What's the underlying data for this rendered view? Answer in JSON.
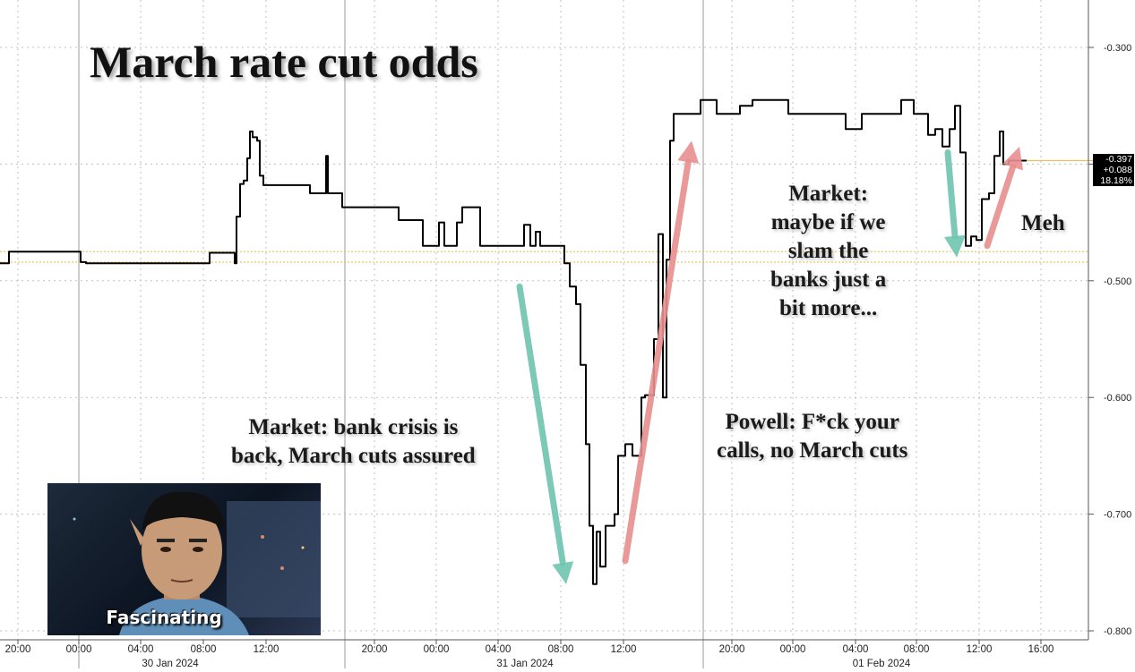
{
  "title": "March rate cut odds",
  "annotations": {
    "left": "Market: bank crisis is back, March cuts assured",
    "left_lines": [
      "Market: bank crisis is",
      "back, March cuts assured"
    ],
    "middle_lines": [
      "Powell: F*ck your",
      "calls, no March cuts"
    ],
    "right_lines": [
      "Market:",
      "maybe if we",
      "slam the",
      "banks just a",
      "bit more..."
    ],
    "meh": "Meh"
  },
  "meme_caption": "Fascinating",
  "last_value": {
    "value": "-0.397",
    "change": "+0.088",
    "percent": "18.18%"
  },
  "colors": {
    "line": "#000000",
    "down_arrow": "#6fc4b0",
    "up_arrow": "#e88f8f",
    "ref_line": "#e6c25a",
    "grid": "#bfbfbf"
  },
  "chart_data": {
    "type": "line",
    "title": "March rate cut odds",
    "xlabel": "",
    "ylabel": "",
    "ylim": [
      -0.8,
      -0.27
    ],
    "y_ticks": [
      "-0.300",
      "-0.400",
      "-0.500",
      "-0.600",
      "-0.700",
      "-0.800"
    ],
    "x_ticks": [
      "20:00",
      "00:00",
      "04:00",
      "08:00",
      "12:00",
      "20:00",
      "00:00",
      "04:00",
      "08:00",
      "12:00",
      "20:00",
      "00:00",
      "04:00",
      "08:00",
      "12:00",
      "16:00"
    ],
    "date_labels": [
      "30 Jan 2024",
      "31 Jan 2024",
      "01 Feb 2024"
    ],
    "series": [
      {
        "values": [
          [
            0,
            -0.485
          ],
          [
            6,
            -0.485
          ],
          [
            10,
            -0.475
          ],
          [
            84,
            -0.475
          ],
          [
            90,
            -0.484
          ],
          [
            96,
            -0.485
          ],
          [
            230,
            -0.485
          ],
          [
            234,
            -0.476
          ],
          [
            258,
            -0.476
          ],
          [
            262,
            -0.485
          ],
          [
            264,
            -0.445
          ],
          [
            268,
            -0.417
          ],
          [
            272,
            -0.414
          ],
          [
            276,
            -0.395
          ],
          [
            279,
            -0.372
          ],
          [
            282,
            -0.377
          ],
          [
            287,
            -0.38
          ],
          [
            290,
            -0.41
          ],
          [
            294,
            -0.418
          ],
          [
            342,
            -0.418
          ],
          [
            346,
            -0.425
          ],
          [
            362,
            -0.425
          ],
          [
            364,
            -0.393
          ],
          [
            366,
            -0.425
          ],
          [
            378,
            -0.425
          ],
          [
            382,
            -0.437
          ],
          [
            440,
            -0.437
          ],
          [
            445,
            -0.448
          ],
          [
            468,
            -0.448
          ],
          [
            472,
            -0.47
          ],
          [
            484,
            -0.47
          ],
          [
            490,
            -0.45
          ],
          [
            496,
            -0.47
          ],
          [
            510,
            -0.45
          ],
          [
            516,
            -0.437
          ],
          [
            530,
            -0.437
          ],
          [
            536,
            -0.47
          ],
          [
            580,
            -0.47
          ],
          [
            585,
            -0.452
          ],
          [
            592,
            -0.47
          ],
          [
            598,
            -0.458
          ],
          [
            603,
            -0.47
          ],
          [
            624,
            -0.47
          ],
          [
            630,
            -0.485
          ],
          [
            636,
            -0.505
          ],
          [
            643,
            -0.52
          ],
          [
            648,
            -0.572
          ],
          [
            654,
            -0.64
          ],
          [
            658,
            -0.71
          ],
          [
            662,
            -0.76
          ],
          [
            666,
            -0.715
          ],
          [
            670,
            -0.745
          ],
          [
            676,
            -0.71
          ],
          [
            686,
            -0.7
          ],
          [
            690,
            -0.65
          ],
          [
            698,
            -0.64
          ],
          [
            706,
            -0.65
          ],
          [
            712,
            -0.65
          ],
          [
            716,
            -0.6
          ],
          [
            720,
            -0.598
          ],
          [
            726,
            -0.598
          ],
          [
            730,
            -0.55
          ],
          [
            735,
            -0.46
          ],
          [
            740,
            -0.6
          ],
          [
            744,
            -0.482
          ],
          [
            748,
            -0.38
          ],
          [
            752,
            -0.357
          ],
          [
            760,
            -0.357
          ],
          [
            778,
            -0.357
          ],
          [
            782,
            -0.345
          ],
          [
            794,
            -0.345
          ],
          [
            800,
            -0.357
          ],
          [
            814,
            -0.357
          ],
          [
            826,
            -0.35
          ],
          [
            840,
            -0.345
          ],
          [
            856,
            -0.345
          ],
          [
            870,
            -0.345
          ],
          [
            880,
            -0.357
          ],
          [
            936,
            -0.357
          ],
          [
            944,
            -0.37
          ],
          [
            962,
            -0.357
          ],
          [
            1000,
            -0.357
          ],
          [
            1006,
            -0.345
          ],
          [
            1020,
            -0.357
          ],
          [
            1030,
            -0.357
          ],
          [
            1036,
            -0.375
          ],
          [
            1044,
            -0.37
          ],
          [
            1052,
            -0.385
          ],
          [
            1060,
            -0.37
          ],
          [
            1066,
            -0.35
          ],
          [
            1072,
            -0.39
          ],
          [
            1078,
            -0.47
          ],
          [
            1084,
            -0.462
          ],
          [
            1090,
            -0.465
          ],
          [
            1096,
            -0.43
          ],
          [
            1104,
            -0.425
          ],
          [
            1110,
            -0.393
          ],
          [
            1116,
            -0.372
          ],
          [
            1120,
            -0.4
          ],
          [
            1126,
            -0.397
          ],
          [
            1146,
            -0.397
          ]
        ]
      }
    ],
    "reference_lines": [
      -0.475,
      -0.484
    ],
    "arrows": [
      {
        "color": "down",
        "from": [
          580,
          -0.505
        ],
        "to": [
          632,
          -0.76
        ]
      },
      {
        "color": "up",
        "from": [
          698,
          -0.74
        ],
        "to": [
          772,
          -0.38
        ]
      },
      {
        "color": "down",
        "from": [
          1058,
          -0.39
        ],
        "to": [
          1068,
          -0.48
        ]
      },
      {
        "color": "up",
        "from": [
          1102,
          -0.47
        ],
        "to": [
          1138,
          -0.385
        ]
      }
    ]
  }
}
